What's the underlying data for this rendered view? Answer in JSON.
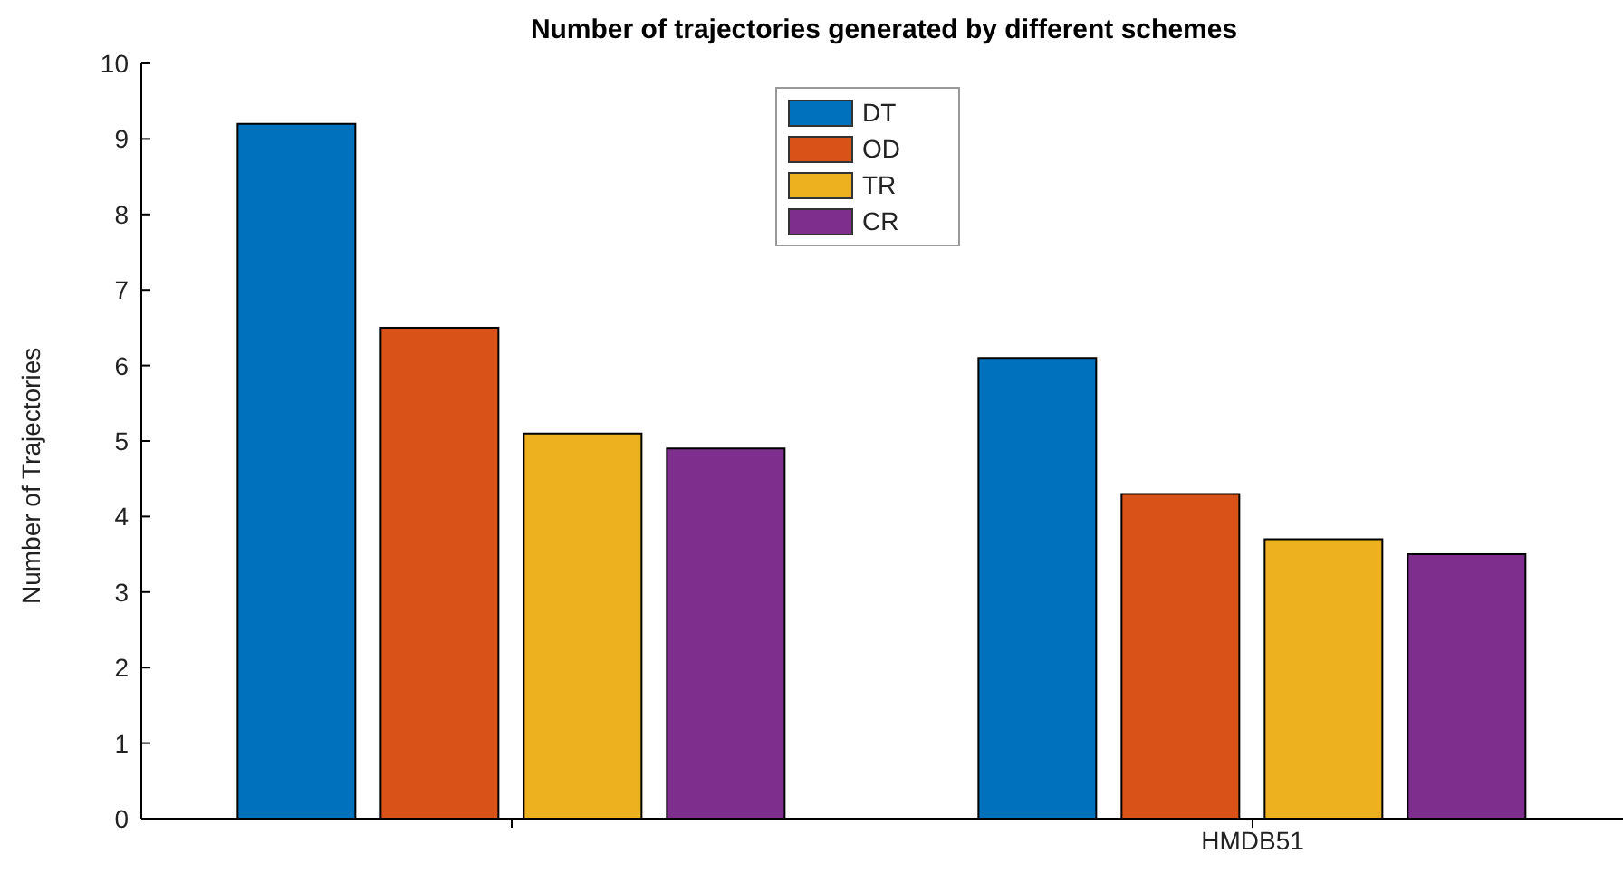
{
  "chart_data": {
    "type": "bar",
    "title": "Number of trajectories generated by different schemes",
    "ylabel": "Number of Trajectories",
    "categories": [
      null,
      "HMDB51"
    ],
    "series": [
      {
        "name": "DT",
        "color": "#0072bd",
        "values": [
          9.2,
          6.1
        ]
      },
      {
        "name": "OD",
        "color": "#d95319",
        "values": [
          6.5,
          4.3
        ]
      },
      {
        "name": "TR",
        "color": "#edb120",
        "values": [
          5.1,
          3.7
        ]
      },
      {
        "name": "CR",
        "color": "#7e2f8e",
        "values": [
          4.9,
          3.5
        ]
      }
    ],
    "ylim": [
      0,
      10
    ],
    "yticks": [
      0,
      1,
      2,
      3,
      4,
      5,
      6,
      7,
      8,
      9,
      10
    ],
    "legend": "top"
  }
}
